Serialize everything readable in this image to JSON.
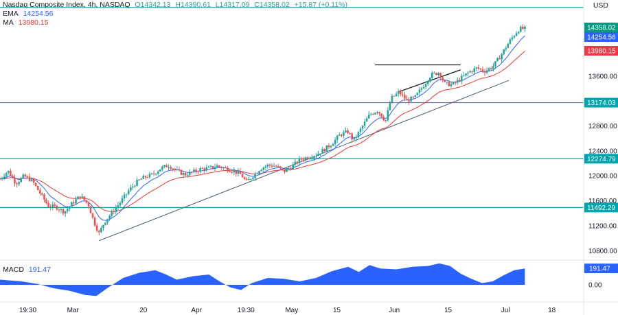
{
  "legend": {
    "title": "Nasdaq Composite Index, 4h, NASDAQ",
    "o": "O14342.13",
    "h": "H14390.61",
    "l": "L14317.09",
    "c": "C14358.02",
    "change": "+15.87 (+0.11%)",
    "ema_label": "EMA",
    "ema_value": "14254.56",
    "ma_label": "MA",
    "ma_value": "13980.15",
    "macd_label": "MACD",
    "macd_value": "191.47"
  },
  "currency": "USD",
  "colors": {
    "up": "#26a69a",
    "down": "#ef5350",
    "ema": "#2962ff",
    "ma": "#e53935",
    "level": "#00a4ad",
    "trend": "#4a5f7a",
    "macd": "#2962ff",
    "badge_dark": "#089981",
    "badge_blue": "#2962ff",
    "badge_red": "#f23645",
    "badge_teal": "#00a4ad"
  },
  "chart_data": {
    "type": "candlestick",
    "yaxis": {
      "ticks": [
        "13600.00",
        "12800.00",
        "12400.00",
        "12000.00",
        "11600.00",
        "11200.00",
        "10800.00"
      ],
      "tick_values": [
        13600,
        12800,
        12400,
        12000,
        11600,
        11200,
        10800
      ],
      "range": [
        10660,
        14820
      ]
    },
    "xaxis": {
      "labels": [
        "19:30",
        "Mar",
        "20",
        "Apr",
        "19:30",
        "May",
        "15",
        "Jun",
        "15",
        "Jul",
        "18"
      ]
    },
    "horizontal_levels": [
      {
        "label": "13174.03",
        "value": 13174.03
      },
      {
        "label": "12274.79",
        "value": 12274.79
      },
      {
        "label": "11492.29",
        "value": 11492.29
      }
    ],
    "price_badges": [
      {
        "label": "14358.02",
        "value": 14358.02,
        "kind": "close"
      },
      {
        "label": "14254.56",
        "value": 14254.56,
        "kind": "ema"
      },
      {
        "label": "13980.15",
        "value": 13980.15,
        "kind": "ma"
      }
    ],
    "trendline": {
      "from": [
        0.185,
        10960
      ],
      "to": [
        0.95,
        13530
      ]
    },
    "triangle": {
      "top": {
        "from": [
          0.7,
          13780
        ],
        "to": [
          0.86,
          13780
        ]
      },
      "bottom": {
        "from": [
          0.745,
          13350
        ],
        "to": [
          0.86,
          13700
        ]
      }
    },
    "close_path": [
      [
        0.0,
        11950
      ],
      [
        0.015,
        12080
      ],
      [
        0.03,
        11880
      ],
      [
        0.045,
        12000
      ],
      [
        0.06,
        11920
      ],
      [
        0.075,
        11720
      ],
      [
        0.09,
        11520
      ],
      [
        0.105,
        11500
      ],
      [
        0.12,
        11420
      ],
      [
        0.135,
        11560
      ],
      [
        0.15,
        11680
      ],
      [
        0.165,
        11540
      ],
      [
        0.175,
        11270
      ],
      [
        0.185,
        11080
      ],
      [
        0.195,
        11260
      ],
      [
        0.21,
        11420
      ],
      [
        0.225,
        11580
      ],
      [
        0.24,
        11760
      ],
      [
        0.255,
        11900
      ],
      [
        0.27,
        11980
      ],
      [
        0.285,
        12020
      ],
      [
        0.3,
        12120
      ],
      [
        0.315,
        12170
      ],
      [
        0.33,
        12080
      ],
      [
        0.345,
        12020
      ],
      [
        0.36,
        12060
      ],
      [
        0.375,
        12110
      ],
      [
        0.39,
        12120
      ],
      [
        0.405,
        12160
      ],
      [
        0.42,
        12120
      ],
      [
        0.435,
        12080
      ],
      [
        0.45,
        12020
      ],
      [
        0.46,
        11900
      ],
      [
        0.47,
        11980
      ],
      [
        0.485,
        12110
      ],
      [
        0.5,
        12170
      ],
      [
        0.515,
        12160
      ],
      [
        0.53,
        12070
      ],
      [
        0.545,
        12150
      ],
      [
        0.56,
        12260
      ],
      [
        0.575,
        12300
      ],
      [
        0.59,
        12340
      ],
      [
        0.605,
        12420
      ],
      [
        0.62,
        12520
      ],
      [
        0.635,
        12660
      ],
      [
        0.65,
        12710
      ],
      [
        0.66,
        12560
      ],
      [
        0.675,
        12770
      ],
      [
        0.69,
        12980
      ],
      [
        0.705,
        13050
      ],
      [
        0.72,
        12880
      ],
      [
        0.73,
        13240
      ],
      [
        0.745,
        13340
      ],
      [
        0.76,
        13210
      ],
      [
        0.775,
        13260
      ],
      [
        0.79,
        13440
      ],
      [
        0.805,
        13620
      ],
      [
        0.82,
        13660
      ],
      [
        0.83,
        13480
      ],
      [
        0.845,
        13460
      ],
      [
        0.86,
        13560
      ],
      [
        0.875,
        13660
      ],
      [
        0.89,
        13730
      ],
      [
        0.905,
        13680
      ],
      [
        0.92,
        13750
      ],
      [
        0.935,
        13930
      ],
      [
        0.95,
        14140
      ],
      [
        0.96,
        14260
      ],
      [
        0.97,
        14360
      ],
      [
        0.98,
        14358
      ]
    ],
    "macd": {
      "label": "MACD",
      "value": 191.47,
      "ticks": [
        "0.00"
      ],
      "tick_values": [
        0
      ],
      "path": [
        [
          0.0,
          60
        ],
        [
          0.04,
          40
        ],
        [
          0.07,
          10
        ],
        [
          0.1,
          -40
        ],
        [
          0.13,
          -70
        ],
        [
          0.16,
          -120
        ],
        [
          0.18,
          -130
        ],
        [
          0.2,
          -40
        ],
        [
          0.23,
          80
        ],
        [
          0.26,
          140
        ],
        [
          0.29,
          170
        ],
        [
          0.31,
          120
        ],
        [
          0.33,
          60
        ],
        [
          0.36,
          100
        ],
        [
          0.39,
          120
        ],
        [
          0.41,
          40
        ],
        [
          0.43,
          -30
        ],
        [
          0.45,
          -60
        ],
        [
          0.47,
          20
        ],
        [
          0.5,
          80
        ],
        [
          0.53,
          70
        ],
        [
          0.56,
          40
        ],
        [
          0.59,
          80
        ],
        [
          0.62,
          160
        ],
        [
          0.65,
          210
        ],
        [
          0.67,
          150
        ],
        [
          0.69,
          230
        ],
        [
          0.71,
          190
        ],
        [
          0.74,
          180
        ],
        [
          0.77,
          210
        ],
        [
          0.8,
          220
        ],
        [
          0.82,
          250
        ],
        [
          0.84,
          220
        ],
        [
          0.86,
          130
        ],
        [
          0.88,
          70
        ],
        [
          0.9,
          20
        ],
        [
          0.92,
          40
        ],
        [
          0.94,
          110
        ],
        [
          0.96,
          170
        ],
        [
          0.98,
          190
        ]
      ],
      "range": [
        -200,
        280
      ]
    }
  }
}
